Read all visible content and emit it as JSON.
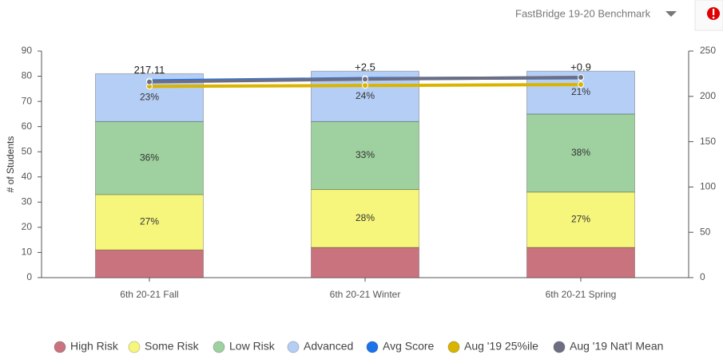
{
  "header": {
    "selector": "FastBridge 19-20 Benchmark"
  },
  "chart_data": {
    "type": "stacked-bar-line",
    "ylabel": "# of Students",
    "categories": [
      "6th 20-21 Fall",
      "6th 20-21 Winter",
      "6th 20-21 Spring"
    ],
    "ylim": [
      0,
      90
    ],
    "yticks": [
      0,
      10,
      20,
      30,
      40,
      50,
      60,
      70,
      80,
      90
    ],
    "y2lim": [
      0,
      250
    ],
    "y2ticks": [
      0,
      50,
      100,
      150,
      200,
      250
    ],
    "grid": false,
    "legend": "bottom",
    "annotations": [
      "217.11",
      "+2.5",
      "+0.9"
    ],
    "series": [
      {
        "name": "High Risk",
        "color": "#c8737d",
        "values": [
          11,
          12,
          12
        ]
      },
      {
        "name": "Some Risk",
        "color": "#f6f67c",
        "values": [
          22,
          23,
          22
        ],
        "percent_labels": [
          "27%",
          "28%",
          "27%"
        ]
      },
      {
        "name": "Low Risk",
        "color": "#9fd09f",
        "values": [
          29,
          27,
          31
        ],
        "percent_labels": [
          "36%",
          "33%",
          "38%"
        ]
      },
      {
        "name": "Advanced",
        "color": "#b5cef5",
        "values": [
          19,
          20,
          17
        ],
        "percent_labels": [
          "23%",
          "24%",
          "21%"
        ]
      },
      {
        "name": "Avg Score",
        "color": "#1a73e8",
        "axis": "y2",
        "values": [
          217.11,
          219.61,
          220.51
        ]
      },
      {
        "name": "Aug '19 25%ile",
        "color": "#d9b400",
        "axis": "y2",
        "values": [
          211,
          212,
          213
        ]
      },
      {
        "name": "Aug '19 Nat'l Mean",
        "color": "#6e6e82",
        "axis": "y2",
        "values": [
          216,
          219,
          221
        ]
      }
    ]
  }
}
